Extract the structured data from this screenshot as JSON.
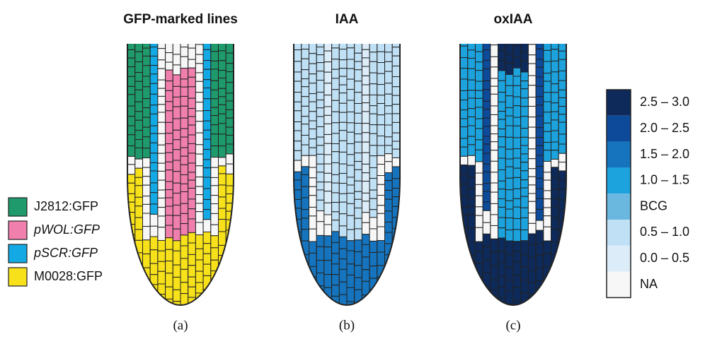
{
  "panels": [
    {
      "title": "GFP-marked lines",
      "label": "(a)"
    },
    {
      "title": "IAA",
      "label": "(b)"
    },
    {
      "title": "oxIAA",
      "label": "(c)"
    }
  ],
  "legend": [
    {
      "label": "J2812:GFP",
      "color": "#1f9a6c",
      "italic": false
    },
    {
      "label": "pWOL:GFP",
      "color": "#f07fae",
      "italic": true
    },
    {
      "label": "pSCR:GFP",
      "color": "#12a9e5",
      "italic": true
    },
    {
      "label": "M0028:GFP",
      "color": "#f7e11a",
      "italic": false
    }
  ],
  "scale": [
    {
      "label": "2.5 – 3.0",
      "color": "#0d2a5a"
    },
    {
      "label": "2.0 – 2.5",
      "color": "#0d4a9a"
    },
    {
      "label": "1.5 – 2.0",
      "color": "#1574bd"
    },
    {
      "label": "1.0 – 1.5",
      "color": "#1ca3dd"
    },
    {
      "label": "BCG",
      "color": "#6ab7e0"
    },
    {
      "label": "0.5 – 1.0",
      "color": "#bfe0f5"
    },
    {
      "label": "0.0 – 0.5",
      "color": "#dcedf9"
    },
    {
      "label": "NA",
      "color": "#f7f7f7"
    }
  ]
}
